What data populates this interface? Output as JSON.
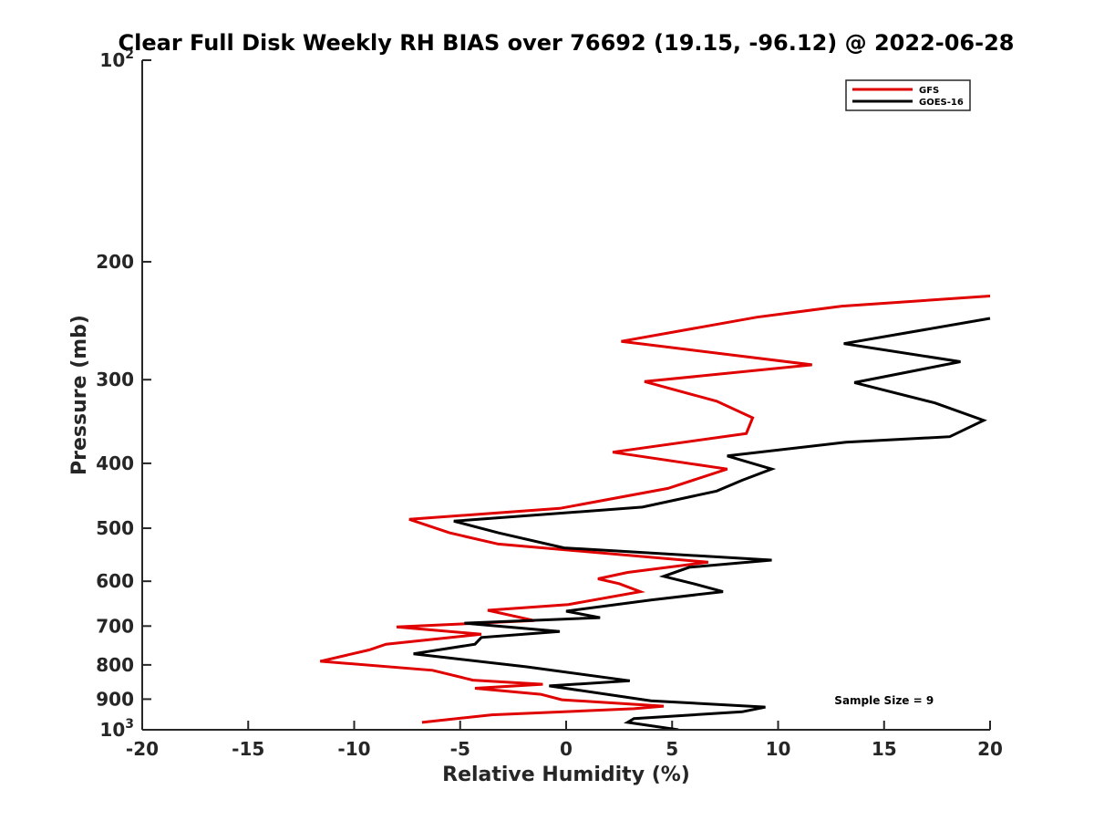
{
  "chart_data": {
    "type": "line",
    "title": "Clear Full Disk Weekly RH BIAS over 76692 (19.15, -96.12) @ 2022-06-28",
    "xlabel": "Relative Humidity (%)",
    "ylabel": "Pressure (mb)",
    "xlim": [
      -20,
      20
    ],
    "ylim": [
      100,
      1000
    ],
    "yscale": "log",
    "yreversed": true,
    "grid": false,
    "legend_position": "top-right",
    "x_ticks": [
      {
        "value": -20,
        "label": "-20"
      },
      {
        "value": -15,
        "label": "-15"
      },
      {
        "value": -10,
        "label": "-10"
      },
      {
        "value": -5,
        "label": "-5"
      },
      {
        "value": 0,
        "label": "0"
      },
      {
        "value": 5,
        "label": "5"
      },
      {
        "value": 10,
        "label": "10"
      },
      {
        "value": 15,
        "label": "15"
      },
      {
        "value": 20,
        "label": "20"
      }
    ],
    "y_ticks": [
      {
        "value": 100,
        "label": "10",
        "sup": "2"
      },
      {
        "value": 200,
        "label": "200"
      },
      {
        "value": 300,
        "label": "300"
      },
      {
        "value": 400,
        "label": "400"
      },
      {
        "value": 500,
        "label": "500"
      },
      {
        "value": 600,
        "label": "600"
      },
      {
        "value": 700,
        "label": "700"
      },
      {
        "value": 800,
        "label": "800"
      },
      {
        "value": 900,
        "label": "900"
      },
      {
        "value": 1000,
        "label": "10",
        "sup": "3"
      }
    ],
    "series": [
      {
        "name": "GFS",
        "color": "#e00000",
        "points": [
          [
            20,
            225
          ],
          [
            13,
            233
          ],
          [
            9,
            242
          ],
          [
            2.6,
            263
          ],
          [
            11.6,
            285
          ],
          [
            3.7,
            302
          ],
          [
            7.1,
            323
          ],
          [
            8.8,
            342
          ],
          [
            8.5,
            361
          ],
          [
            2.2,
            385
          ],
          [
            7.6,
            408
          ],
          [
            4.8,
            436
          ],
          [
            -0.3,
            467
          ],
          [
            -7.4,
            485
          ],
          [
            -5.5,
            508
          ],
          [
            -3.2,
            528
          ],
          [
            6.7,
            562
          ],
          [
            2.9,
            582
          ],
          [
            1.5,
            595
          ],
          [
            2.5,
            605
          ],
          [
            3.5,
            622
          ],
          [
            0.1,
            650
          ],
          [
            -3.7,
            663
          ],
          [
            -1.5,
            687
          ],
          [
            -8,
            702
          ],
          [
            -4,
            720
          ],
          [
            -8.5,
            745
          ],
          [
            -9.3,
            760
          ],
          [
            -11.6,
            790
          ],
          [
            -6.3,
            815
          ],
          [
            -4.4,
            843
          ],
          [
            -1.1,
            855
          ],
          [
            -4.3,
            867
          ],
          [
            -1.2,
            885
          ],
          [
            -0.2,
            902
          ],
          [
            4.6,
            922
          ],
          [
            3.2,
            930
          ],
          [
            -3.5,
            950
          ],
          [
            -6.8,
            975
          ]
        ]
      },
      {
        "name": "GOES-16",
        "color": "#000000",
        "points": [
          [
            20,
            243
          ],
          [
            13.1,
            265
          ],
          [
            18.6,
            282
          ],
          [
            13.6,
            303
          ],
          [
            17.4,
            325
          ],
          [
            19.7,
            345
          ],
          [
            18.1,
            365
          ],
          [
            13.2,
            372
          ],
          [
            7.6,
            390
          ],
          [
            9.7,
            408
          ],
          [
            8.3,
            424
          ],
          [
            7.1,
            440
          ],
          [
            3.6,
            465
          ],
          [
            -5.3,
            488
          ],
          [
            -3.2,
            508
          ],
          [
            -0.1,
            535
          ],
          [
            9.7,
            558
          ],
          [
            5.8,
            572
          ],
          [
            4.6,
            590
          ],
          [
            6,
            605
          ],
          [
            7.4,
            622
          ],
          [
            4,
            640
          ],
          [
            0,
            665
          ],
          [
            1.6,
            680
          ],
          [
            -4.8,
            693
          ],
          [
            -0.3,
            713
          ],
          [
            -4,
            728
          ],
          [
            -4.3,
            745
          ],
          [
            -7.2,
            770
          ],
          [
            -1.9,
            805
          ],
          [
            3,
            845
          ],
          [
            -0.8,
            860
          ],
          [
            4,
            905
          ],
          [
            9.4,
            925
          ],
          [
            8.3,
            940
          ],
          [
            3.2,
            962
          ],
          [
            2.9,
            975
          ],
          [
            5.3,
            1000
          ]
        ]
      }
    ],
    "annotations": [
      {
        "text": "Sample Size = 9",
        "x": 15,
        "y": 905
      }
    ]
  }
}
